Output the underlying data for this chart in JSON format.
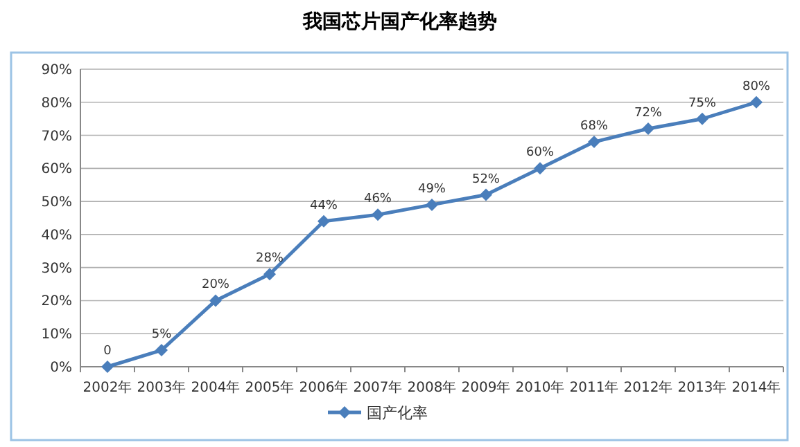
{
  "chart_data": {
    "type": "line",
    "title": "我国芯片国产化率趋势",
    "categories": [
      "2002年",
      "2003年",
      "2004年",
      "2005年",
      "2006年",
      "2007年",
      "2008年",
      "2009年",
      "2010年",
      "2011年",
      "2012年",
      "2013年",
      "2014年"
    ],
    "series": [
      {
        "name": "国产化率",
        "color": "#4a7ebb",
        "values": [
          0,
          5,
          20,
          28,
          44,
          46,
          49,
          52,
          60,
          68,
          72,
          75,
          80
        ],
        "value_labels": [
          "0",
          "5%",
          "20%",
          "28%",
          "44%",
          "46%",
          "49%",
          "52%",
          "60%",
          "68%",
          "72%",
          "75%",
          "80%"
        ]
      }
    ],
    "ylim": [
      0,
      90
    ],
    "yticks": [
      {
        "value": 0,
        "label": "0%"
      },
      {
        "value": 10,
        "label": "10%"
      },
      {
        "value": 20,
        "label": "20%"
      },
      {
        "value": 30,
        "label": "30%"
      },
      {
        "value": 40,
        "label": "40%"
      },
      {
        "value": 50,
        "label": "50%"
      },
      {
        "value": 60,
        "label": "60%"
      },
      {
        "value": 70,
        "label": "70%"
      },
      {
        "value": 80,
        "label": "80%"
      },
      {
        "value": 90,
        "label": "90%"
      }
    ],
    "grid": "y",
    "legend": "bottom",
    "marker": "diamond",
    "line_style": "solid"
  }
}
